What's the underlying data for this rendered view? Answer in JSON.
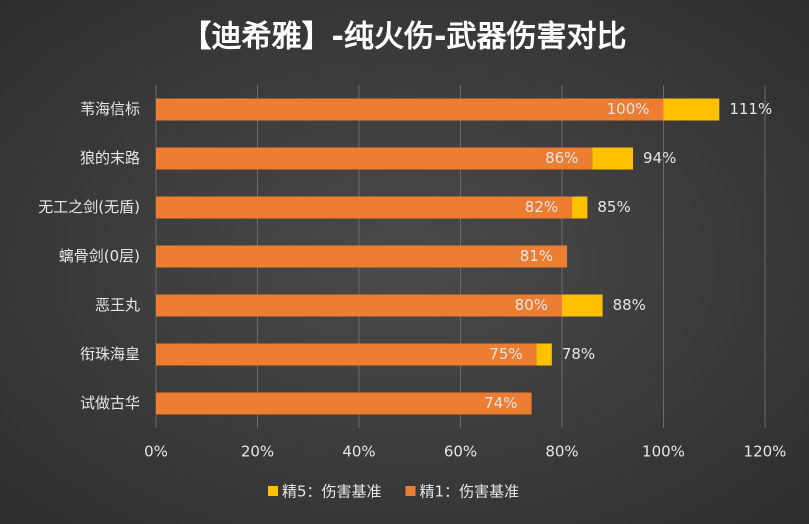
{
  "chart_data": {
    "type": "hbar_overlap",
    "title": "【迪希雅】-纯火伤-武器伤害对比",
    "categories": [
      "苇海信标",
      "狼的末路",
      "无工之剑(无盾)",
      "螭骨剑(0层)",
      "恶王丸",
      "衔珠海皇",
      "试做古华"
    ],
    "series": [
      {
        "name": "精5：伤害基准",
        "color": "#FFC000",
        "values": [
          111,
          94,
          85,
          null,
          88,
          78,
          null
        ],
        "value_labels": [
          "111%",
          "94%",
          "85%",
          null,
          "88%",
          "78%",
          null
        ]
      },
      {
        "name": "精1：伤害基准",
        "color": "#ED7D31",
        "values": [
          100,
          86,
          82,
          81,
          80,
          75,
          74
        ],
        "value_labels": [
          "100%",
          "86%",
          "82%",
          "81%",
          "80%",
          "75%",
          "74%"
        ]
      }
    ],
    "xlim": [
      0,
      120
    ],
    "xticks": [
      {
        "value": 0,
        "label": "0%"
      },
      {
        "value": 20,
        "label": "20%"
      },
      {
        "value": 40,
        "label": "40%"
      },
      {
        "value": 60,
        "label": "60%"
      },
      {
        "value": 80,
        "label": "80%"
      },
      {
        "value": 100,
        "label": "100%"
      },
      {
        "value": 120,
        "label": "120%"
      }
    ],
    "grid": true,
    "legend": "bottom"
  }
}
